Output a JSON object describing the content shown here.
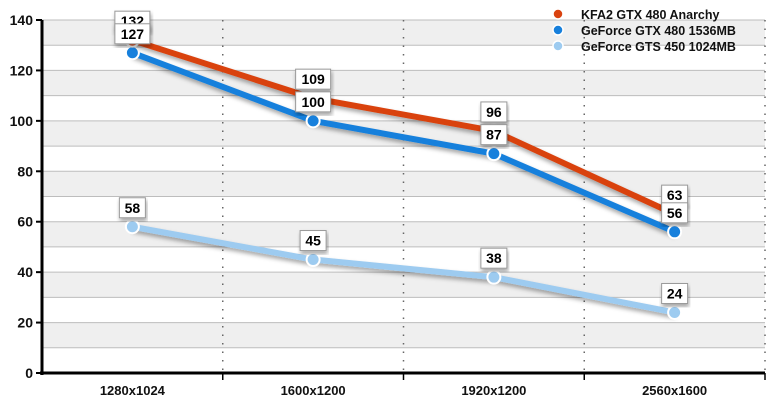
{
  "chart_data": {
    "type": "line",
    "title": "",
    "xlabel": "",
    "ylabel": "",
    "categories": [
      "1280x1024",
      "1600x1200",
      "1920x1200",
      "2560x1600"
    ],
    "ylim": [
      0,
      140
    ],
    "yticks": [
      0,
      20,
      40,
      60,
      80,
      100,
      120,
      140
    ],
    "grid": true,
    "legend_position": "top-right",
    "series": [
      {
        "name": "KFA2 GTX 480 Anarchy",
        "color": "#d9420f",
        "values": [
          132,
          109,
          96,
          63
        ]
      },
      {
        "name": "GeForce GTX 480 1536MB",
        "color": "#1780dc",
        "values": [
          127,
          100,
          87,
          56
        ]
      },
      {
        "name": "GeForce GTS 450 1024MB",
        "color": "#9dcbf0",
        "values": [
          58,
          45,
          38,
          24
        ]
      }
    ]
  }
}
